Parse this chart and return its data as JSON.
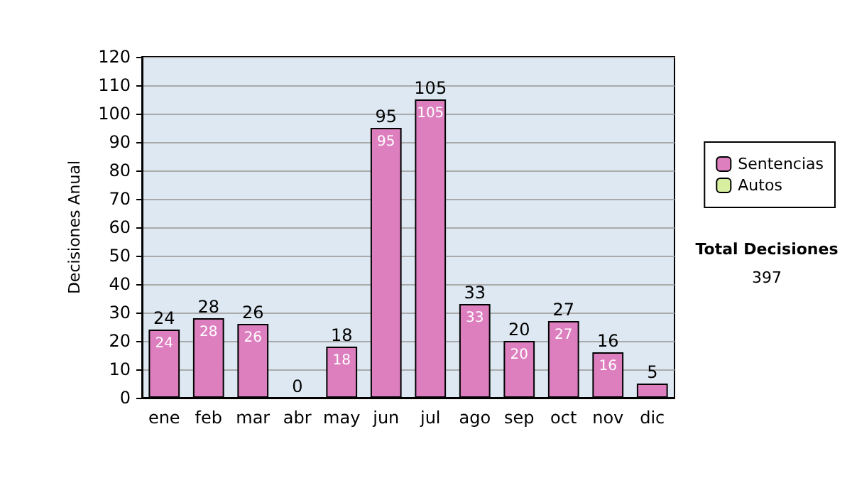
{
  "chart_data": {
    "type": "bar",
    "ylabel": "Decisiones Anual",
    "categories": [
      "ene",
      "feb",
      "mar",
      "abr",
      "may",
      "jun",
      "jul",
      "ago",
      "sep",
      "oct",
      "nov",
      "dic"
    ],
    "series": [
      {
        "name": "Sentencias",
        "color": "#dd7fbf",
        "values": [
          24,
          28,
          26,
          0,
          18,
          95,
          105,
          33,
          20,
          27,
          16,
          5
        ],
        "value_labels": [
          "24",
          "28",
          "26",
          null,
          "18",
          "95",
          "105",
          "33",
          "20",
          "27",
          "16",
          null
        ]
      },
      {
        "name": "Autos",
        "color": "#d8eea0",
        "values": [
          0,
          0,
          0,
          0,
          0,
          0,
          0,
          0,
          0,
          0,
          0,
          0
        ]
      }
    ],
    "stacked": true,
    "totals": [
      "24",
      "28",
      "26",
      "0",
      "18",
      "95",
      "105",
      "33",
      "20",
      "27",
      "16",
      "5"
    ],
    "ylim": [
      0,
      120
    ],
    "yticks": [
      0,
      10,
      20,
      30,
      40,
      50,
      60,
      70,
      80,
      90,
      100,
      110,
      120
    ],
    "grid": "y",
    "legend": "right",
    "annotations": [
      "Total Decisiones",
      "397"
    ]
  }
}
